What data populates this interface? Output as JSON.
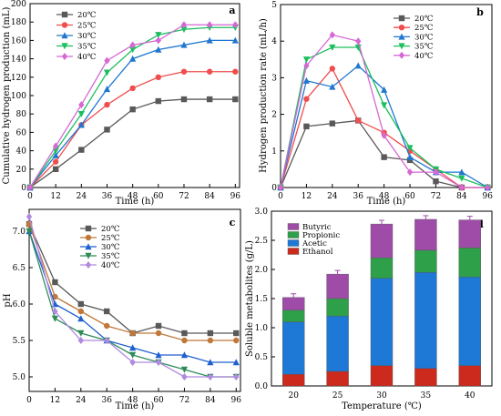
{
  "chart_data": [
    {
      "type": "line",
      "panel_label": "a",
      "xlabel": "Time (h)",
      "ylabel": "Cumulative hydrogen production (mL)",
      "x": [
        0,
        12,
        24,
        36,
        48,
        60,
        72,
        84,
        96
      ],
      "xticks": [
        "0",
        "12",
        "24",
        "36",
        "48",
        "60",
        "72",
        "84",
        "96"
      ],
      "xlim": [
        0,
        98
      ],
      "ylim": [
        0,
        200
      ],
      "yticks": [
        "0",
        "20",
        "40",
        "60",
        "80",
        "100",
        "120",
        "140",
        "160",
        "180",
        "200"
      ],
      "legend_position": "top-left",
      "grid": false,
      "series": [
        {
          "name": "20℃",
          "color": "#595959",
          "marker": "square",
          "values": [
            0,
            20,
            41,
            63,
            85,
            94,
            96,
            96,
            96
          ]
        },
        {
          "name": "25℃",
          "color": "#f04e4e",
          "marker": "circle",
          "values": [
            0,
            28,
            68,
            90,
            108,
            120,
            126,
            126,
            126
          ]
        },
        {
          "name": "30℃",
          "color": "#1f77d0",
          "marker": "triangle-up",
          "values": [
            0,
            35,
            68,
            107,
            140,
            150,
            155,
            160,
            160
          ]
        },
        {
          "name": "35℃",
          "color": "#1bbf5e",
          "marker": "triangle-down",
          "values": [
            0,
            40,
            80,
            125,
            150,
            166,
            172,
            174,
            174
          ]
        },
        {
          "name": "40℃",
          "color": "#d568d5",
          "marker": "diamond",
          "values": [
            0,
            45,
            90,
            138,
            155,
            160,
            177,
            177,
            177
          ]
        }
      ]
    },
    {
      "type": "line",
      "panel_label": "b",
      "xlabel": "Time (h)",
      "ylabel": "Hydrogen production rate (mL/h)",
      "x": [
        0,
        12,
        24,
        36,
        48,
        60,
        72,
        84,
        96
      ],
      "xticks": [
        "0",
        "12",
        "24",
        "36",
        "48",
        "60",
        "72",
        "84",
        "96"
      ],
      "xlim": [
        0,
        98
      ],
      "ylim": [
        0,
        5
      ],
      "yticks": [
        "0",
        "1",
        "2",
        "3",
        "4",
        "5"
      ],
      "legend_position": "top-right",
      "grid": false,
      "series": [
        {
          "name": "20℃",
          "color": "#595959",
          "marker": "square",
          "values": [
            0,
            1.67,
            1.75,
            1.83,
            0.83,
            0.75,
            0.17,
            0,
            0
          ]
        },
        {
          "name": "25℃",
          "color": "#f04e4e",
          "marker": "circle",
          "values": [
            0,
            2.42,
            3.25,
            1.83,
            1.5,
            1.0,
            0.5,
            0,
            0
          ]
        },
        {
          "name": "30℃",
          "color": "#1f77d0",
          "marker": "triangle-up",
          "values": [
            0,
            2.92,
            2.75,
            3.33,
            2.67,
            0.83,
            0.42,
            0.42,
            0
          ]
        },
        {
          "name": "35℃",
          "color": "#1bbf5e",
          "marker": "triangle-down",
          "values": [
            0,
            3.5,
            3.83,
            3.83,
            2.25,
            1.08,
            0.5,
            0.25,
            0
          ]
        },
        {
          "name": "40℃",
          "color": "#d568d5",
          "marker": "diamond",
          "values": [
            0,
            3.33,
            4.17,
            4.0,
            1.42,
            0.42,
            0.42,
            0,
            0
          ]
        }
      ]
    },
    {
      "type": "line",
      "panel_label": "c",
      "xlabel": "Time (h)",
      "ylabel": "pH",
      "x": [
        0,
        12,
        24,
        36,
        48,
        60,
        72,
        84,
        96
      ],
      "xticks": [
        "0",
        "12",
        "24",
        "36",
        "48",
        "60",
        "72",
        "84",
        "96"
      ],
      "xlim": [
        0,
        98
      ],
      "ylim": [
        4.8,
        7.3
      ],
      "yticks": [
        "5.0",
        "5.5",
        "6.0",
        "6.5",
        "7.0"
      ],
      "ytick_values": [
        5.0,
        5.5,
        6.0,
        6.5,
        7.0
      ],
      "legend_position": "top-center",
      "grid": false,
      "series": [
        {
          "name": "20℃",
          "color": "#595959",
          "marker": "square",
          "values": [
            7.1,
            6.3,
            6.0,
            5.9,
            5.6,
            5.7,
            5.6,
            5.6,
            5.6
          ]
        },
        {
          "name": "25℃",
          "color": "#c0783a",
          "marker": "circle",
          "values": [
            7.1,
            6.1,
            5.9,
            5.7,
            5.6,
            5.6,
            5.5,
            5.5,
            5.5
          ]
        },
        {
          "name": "30℃",
          "color": "#1f5fcf",
          "marker": "triangle-up",
          "values": [
            7.0,
            6.0,
            5.8,
            5.5,
            5.4,
            5.3,
            5.3,
            5.2,
            5.2
          ]
        },
        {
          "name": "35℃",
          "color": "#2e8b57",
          "marker": "triangle-down",
          "values": [
            7.0,
            5.8,
            5.6,
            5.5,
            5.3,
            5.2,
            5.1,
            5.0,
            5.0
          ]
        },
        {
          "name": "40℃",
          "color": "#b089e0",
          "marker": "diamond",
          "values": [
            7.2,
            5.9,
            5.5,
            5.5,
            5.2,
            5.2,
            5.0,
            5.0,
            5.0
          ]
        }
      ]
    },
    {
      "type": "bar",
      "stacked": true,
      "panel_label": "d",
      "xlabel": "Temperature (℃)",
      "ylabel": "Soluble metabolites (g/L)",
      "categories": [
        "20",
        "25",
        "30",
        "35",
        "40"
      ],
      "ylim": [
        0,
        3.0
      ],
      "yticks": [
        "0.0",
        "0.5",
        "1.0",
        "1.5",
        "2.0",
        "2.5",
        "3.0"
      ],
      "ytick_values": [
        0,
        0.5,
        1.0,
        1.5,
        2.0,
        2.5,
        3.0
      ],
      "legend_position": "top-left",
      "grid": false,
      "series": [
        {
          "name": "Ethanol",
          "color": "#cc2a1c",
          "values": [
            0.2,
            0.25,
            0.35,
            0.3,
            0.35
          ]
        },
        {
          "name": "Acetic",
          "color": "#1e78d6",
          "values": [
            0.9,
            0.95,
            1.5,
            1.65,
            1.52
          ]
        },
        {
          "name": "Propionic",
          "color": "#2fa04a",
          "values": [
            0.2,
            0.3,
            0.35,
            0.38,
            0.5
          ]
        },
        {
          "name": "Butyric",
          "color": "#9e4ca8",
          "values": [
            0.22,
            0.42,
            0.58,
            0.53,
            0.48
          ]
        }
      ],
      "totals": [
        1.52,
        1.92,
        2.78,
        2.86,
        2.85
      ]
    }
  ]
}
